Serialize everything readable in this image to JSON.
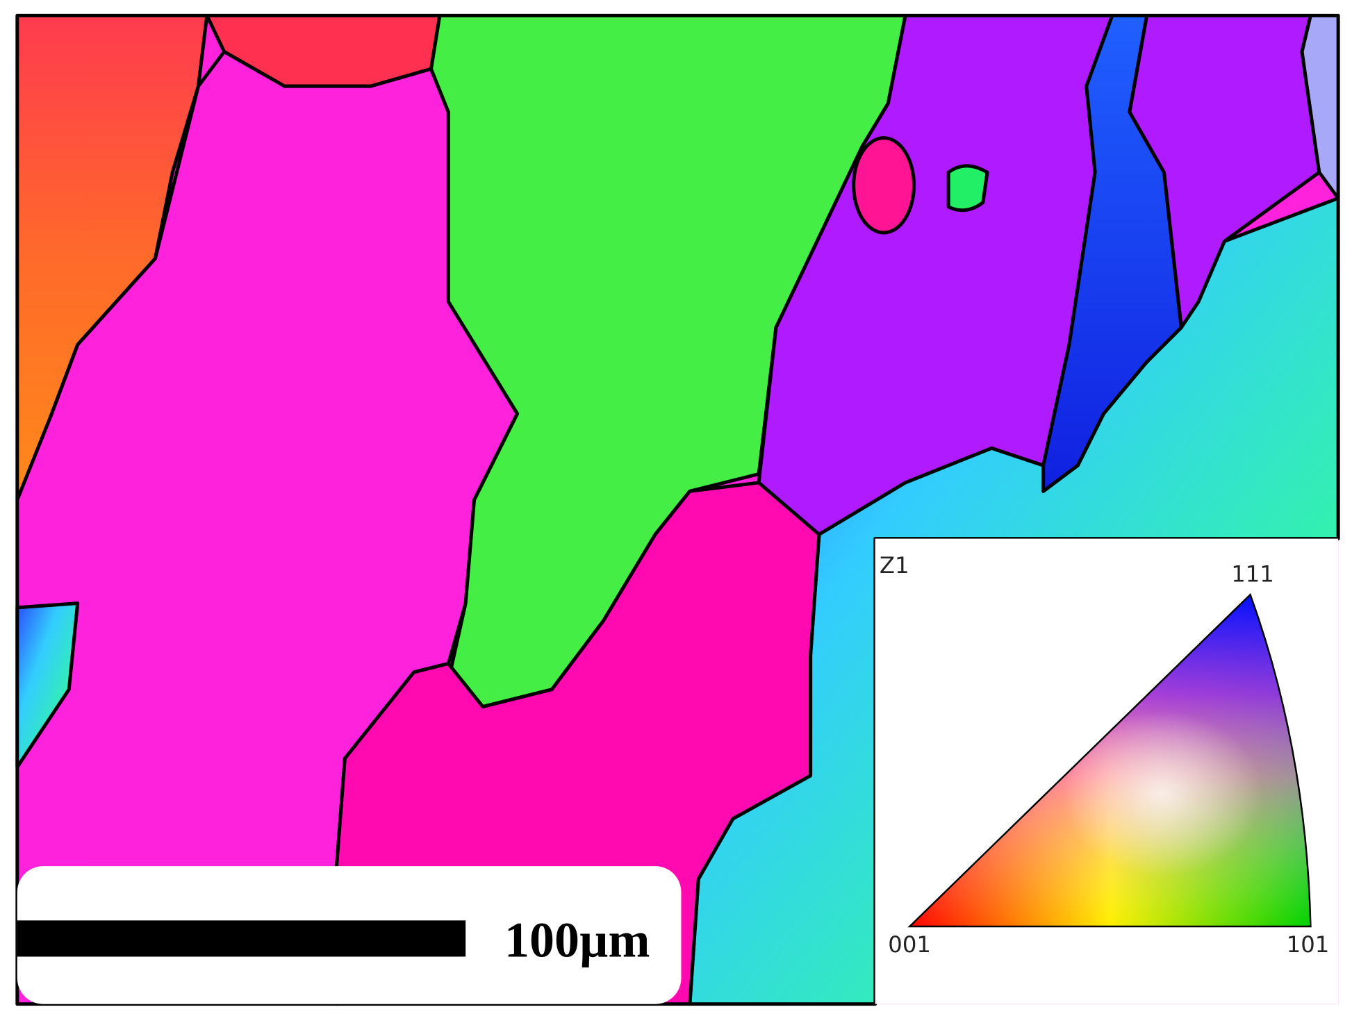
{
  "scale_bar": {
    "label": "100µm"
  },
  "legend": {
    "title": "Z1",
    "labels": {
      "top": "111",
      "left": "001",
      "right": "101"
    }
  }
}
